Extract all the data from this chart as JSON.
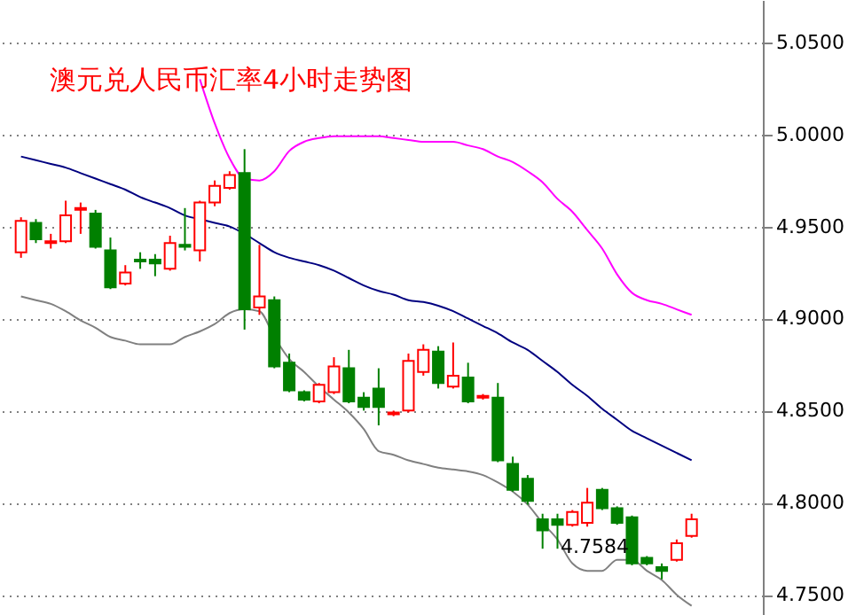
{
  "chart_data": {
    "type": "candlestick",
    "title": "澳元兑人民币汇率4小时走势图",
    "categories": [
      null,
      null,
      null,
      null,
      null,
      null,
      null,
      null,
      null,
      null,
      null,
      null,
      null,
      null,
      null,
      null,
      null,
      null,
      null,
      null,
      null,
      null,
      null,
      null,
      null,
      null,
      null,
      null,
      null,
      null,
      null,
      null,
      null,
      null,
      null,
      null,
      null,
      null,
      null,
      null,
      null,
      null,
      null,
      null,
      null,
      null
    ],
    "ohlc": [
      [
        4.936,
        4.955,
        4.933,
        4.953
      ],
      [
        4.952,
        4.954,
        4.941,
        4.943
      ],
      [
        4.941,
        4.946,
        4.938,
        4.942
      ],
      [
        4.942,
        4.964,
        4.941,
        4.956
      ],
      [
        4.959,
        4.963,
        4.946,
        4.96
      ],
      [
        4.957,
        4.959,
        4.938,
        4.939
      ],
      [
        4.937,
        4.944,
        4.916,
        4.917
      ],
      [
        4.919,
        4.929,
        4.918,
        4.925
      ],
      [
        4.932,
        4.936,
        4.927,
        4.931
      ],
      [
        4.932,
        4.935,
        4.923,
        4.93
      ],
      [
        4.927,
        4.945,
        4.926,
        4.941
      ],
      [
        4.94,
        4.96,
        4.937,
        4.939
      ],
      [
        4.937,
        4.964,
        4.931,
        4.963
      ],
      [
        4.963,
        4.975,
        4.961,
        4.972
      ],
      [
        4.971,
        4.98,
        4.97,
        4.978
      ],
      [
        4.979,
        4.992,
        4.894,
        4.905
      ],
      [
        4.906,
        4.94,
        4.902,
        4.912
      ],
      [
        4.91,
        4.912,
        4.873,
        4.874
      ],
      [
        4.876,
        4.881,
        4.86,
        4.861
      ],
      [
        4.86,
        4.861,
        4.855,
        4.856
      ],
      [
        4.855,
        4.865,
        4.854,
        4.864
      ],
      [
        4.86,
        4.879,
        4.859,
        4.874
      ],
      [
        4.873,
        4.883,
        4.854,
        4.855
      ],
      [
        4.857,
        4.86,
        4.85,
        4.852
      ],
      [
        4.862,
        4.873,
        4.842,
        4.852
      ],
      [
        4.848,
        4.85,
        4.847,
        4.849
      ],
      [
        4.85,
        4.881,
        4.849,
        4.877
      ],
      [
        4.871,
        4.886,
        4.869,
        4.883
      ],
      [
        4.882,
        4.885,
        4.862,
        4.865
      ],
      [
        4.863,
        4.887,
        4.862,
        4.869
      ],
      [
        4.868,
        4.876,
        4.854,
        4.855
      ],
      [
        4.857,
        4.859,
        4.856,
        4.858
      ],
      [
        4.857,
        4.865,
        4.822,
        4.823
      ],
      [
        4.821,
        4.825,
        4.806,
        4.807
      ],
      [
        4.813,
        4.815,
        4.799,
        4.801
      ],
      [
        4.791,
        4.794,
        4.775,
        4.785
      ],
      [
        4.791,
        4.794,
        4.775,
        4.788
      ],
      [
        4.788,
        4.796,
        4.787,
        4.795
      ],
      [
        4.789,
        4.808,
        4.787,
        4.8
      ],
      [
        4.807,
        4.808,
        4.796,
        4.797
      ],
      [
        4.797,
        4.798,
        4.788,
        4.789
      ],
      [
        4.792,
        4.793,
        4.766,
        4.767
      ],
      [
        4.77,
        4.771,
        4.766,
        4.767
      ],
      [
        4.765,
        4.767,
        4.7584,
        4.763
      ],
      [
        4.769,
        4.78,
        4.768,
        4.778
      ],
      [
        4.782,
        4.794,
        4.781,
        4.791
      ]
    ],
    "colors": [
      "#ff0000",
      "#008000",
      "#ff0000",
      "#ff0000",
      "#ff0000",
      "#008000",
      "#008000",
      "#ff0000",
      "#008000",
      "#008000",
      "#ff0000",
      "#008000",
      "#ff0000",
      "#ff0000",
      "#ff0000",
      "#008000",
      "#ff0000",
      "#008000",
      "#008000",
      "#008000",
      "#ff0000",
      "#ff0000",
      "#008000",
      "#008000",
      "#008000",
      "#ff0000",
      "#ff0000",
      "#ff0000",
      "#008000",
      "#ff0000",
      "#008000",
      "#ff0000",
      "#008000",
      "#008000",
      "#008000",
      "#008000",
      "#008000",
      "#ff0000",
      "#ff0000",
      "#008000",
      "#008000",
      "#008000",
      "#008000",
      "#008000",
      "#ff0000",
      "#ff0000"
    ],
    "series": [
      {
        "type": "line",
        "color": "#ff00ff",
        "values": [
          null,
          null,
          null,
          null,
          null,
          null,
          null,
          null,
          null,
          null,
          null,
          null,
          5.03,
          5.006,
          4.987,
          4.976,
          4.975,
          4.98,
          4.991,
          4.996,
          4.998,
          4.999,
          4.999,
          4.999,
          4.999,
          4.998,
          4.997,
          4.996,
          4.996,
          4.996,
          4.994,
          4.992,
          4.988,
          4.985,
          4.98,
          4.974,
          4.965,
          4.958,
          4.948,
          4.938,
          4.924,
          4.914,
          4.91,
          4.908,
          4.905,
          4.902
        ]
      },
      {
        "type": "line",
        "color": "#000080",
        "values": [
          4.988,
          4.986,
          4.984,
          4.982,
          4.979,
          4.976,
          4.973,
          4.97,
          4.966,
          4.963,
          4.96,
          4.956,
          4.954,
          4.952,
          4.95,
          4.946,
          4.941,
          4.936,
          4.933,
          4.931,
          4.929,
          4.926,
          4.922,
          4.918,
          4.915,
          4.913,
          4.91,
          4.909,
          4.907,
          4.904,
          4.9,
          4.896,
          4.892,
          4.887,
          4.883,
          4.877,
          4.871,
          4.864,
          4.858,
          4.851,
          4.845,
          4.839,
          4.835,
          4.831,
          4.827,
          4.823
        ]
      },
      {
        "type": "line",
        "color": "#808080",
        "values": [
          4.912,
          4.91,
          4.908,
          4.904,
          4.899,
          4.895,
          4.89,
          4.888,
          4.886,
          4.886,
          4.886,
          4.89,
          4.893,
          4.897,
          4.903,
          4.905,
          4.904,
          4.89,
          4.878,
          4.871,
          4.863,
          4.856,
          4.849,
          4.84,
          4.828,
          4.826,
          4.823,
          4.821,
          4.819,
          4.818,
          4.817,
          4.815,
          4.811,
          4.806,
          4.799,
          4.789,
          4.78,
          4.767,
          4.763,
          4.763,
          4.769,
          4.769,
          4.763,
          4.758,
          4.75,
          4.744
        ]
      }
    ],
    "ylim": [
      4.739,
      5.073
    ],
    "yticks": [
      {
        "value": 4.75,
        "label": "4.7500"
      },
      {
        "value": 4.8,
        "label": "4.8000"
      },
      {
        "value": 4.85,
        "label": "4.8500"
      },
      {
        "value": 4.9,
        "label": "4.9000"
      },
      {
        "value": 4.95,
        "label": "4.9500"
      },
      {
        "value": 5.0,
        "label": "5.0000"
      },
      {
        "value": 5.05,
        "label": "5.0500"
      }
    ],
    "grid": "y",
    "annotations": [
      "4.7584"
    ]
  }
}
